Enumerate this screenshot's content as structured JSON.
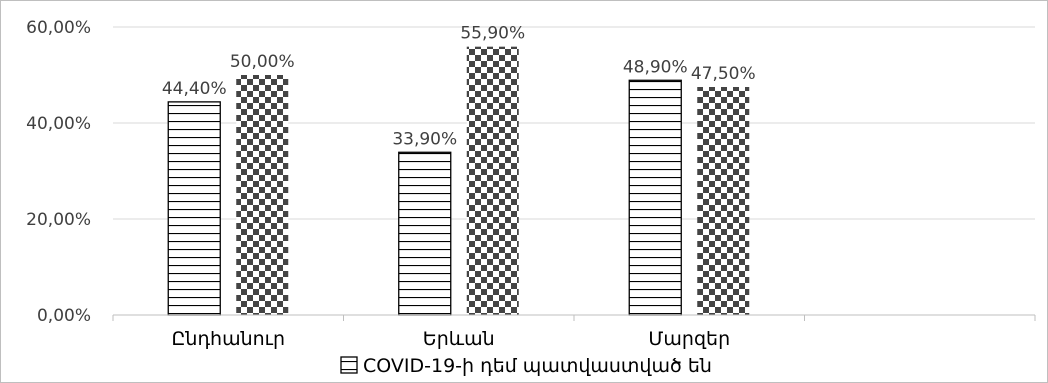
{
  "chart_data": {
    "type": "bar",
    "categories": [
      "Ընդհանուր",
      "Երևան",
      "Մարզեր"
    ],
    "series": [
      {
        "name": "COVID-19-ի դեմ պատվաստված են",
        "values": [
          44.4,
          33.9,
          48.9
        ],
        "labels": [
          "44,40%",
          "33,90%",
          "48,90%"
        ],
        "pattern": "horizontal-stripes"
      },
      {
        "values": [
          50.0,
          55.9,
          47.5
        ],
        "labels": [
          "50,00%",
          "55,90%",
          "47,50%"
        ],
        "pattern": "checkerboard"
      }
    ],
    "yticks": [
      "0,00%",
      "20,00%",
      "40,00%",
      "60,00%"
    ],
    "ytick_values": [
      0,
      20,
      40,
      60
    ],
    "ylim": [
      0,
      60
    ],
    "grid": true,
    "legend_position": "bottom",
    "colors": {
      "gridline": "#d9d9d9",
      "bar_edge": "#000000",
      "text": "#404040"
    }
  }
}
